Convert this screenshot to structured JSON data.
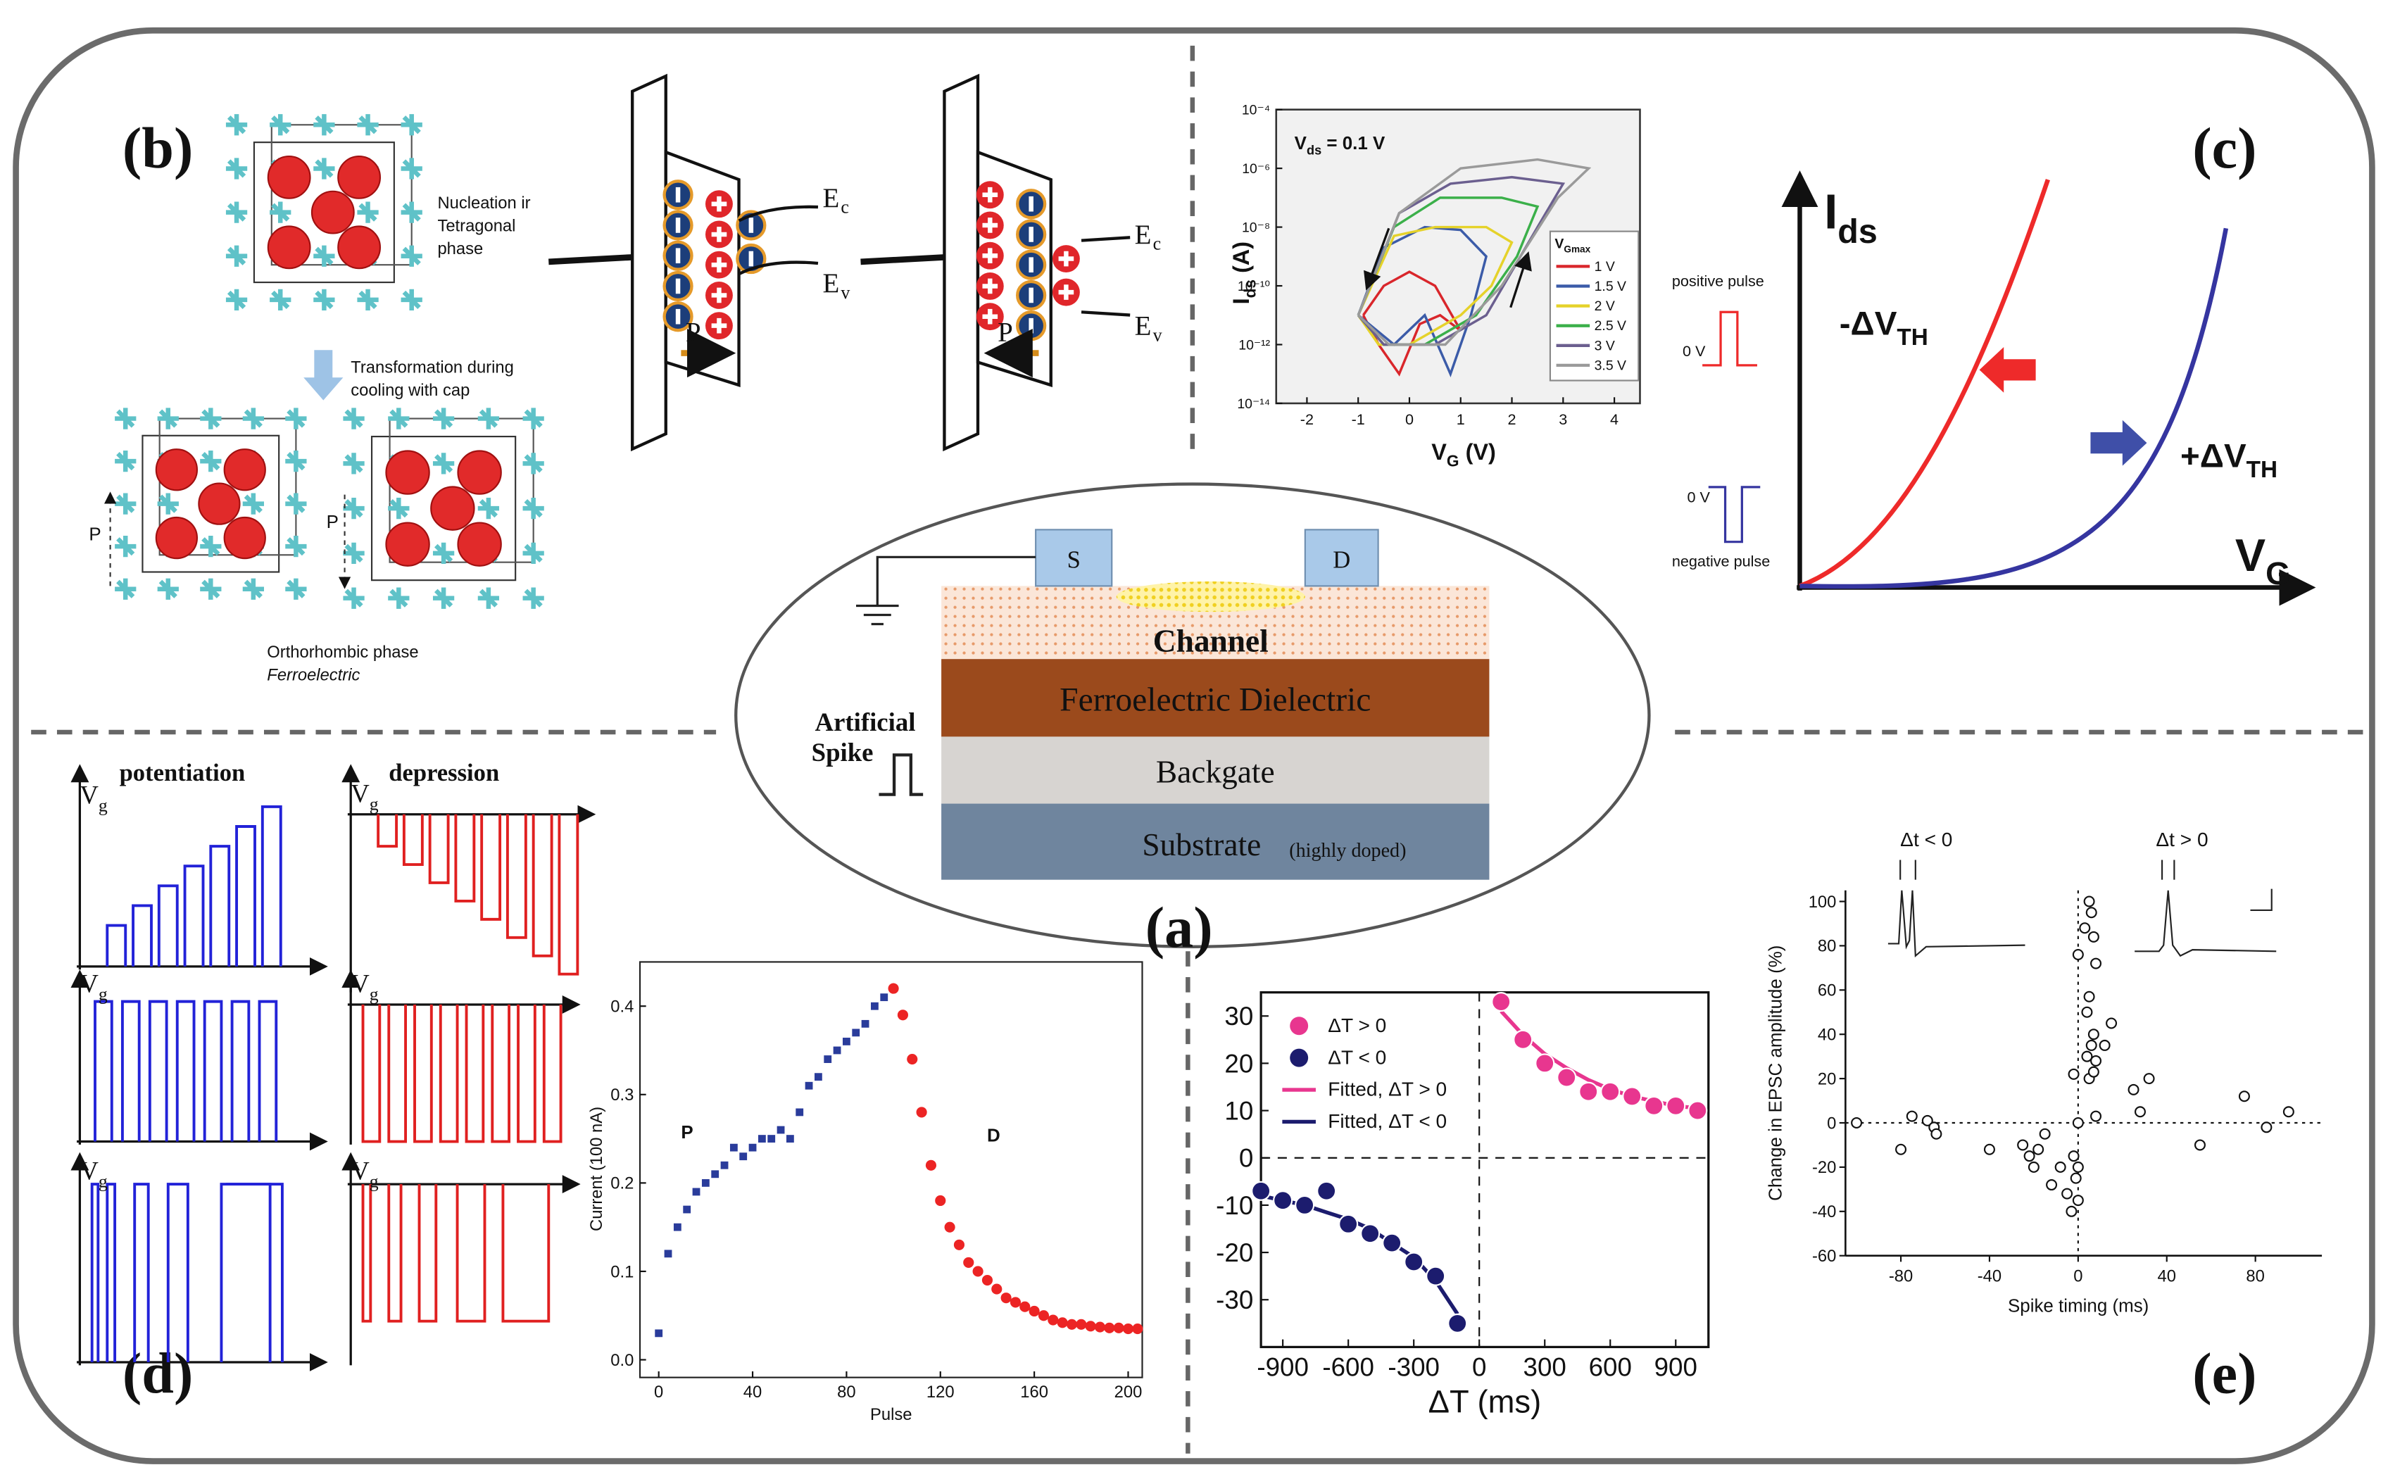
{
  "panels": {
    "a": {
      "label": "(a)",
      "source": "S",
      "drain": "D",
      "channel": "Channel",
      "dielectric": "Ferroelectric Dielectric",
      "backgate": "Backgate",
      "substrate": "Substrate",
      "substrate_note": "(highly doped)",
      "spike": [
        "Artificial",
        "Spike"
      ]
    },
    "b": {
      "label": "(b)",
      "nucleation": [
        "Nucleation ir",
        "Tetragonal",
        "phase"
      ],
      "transformation": [
        "Transformation during",
        "cooling with cap"
      ],
      "polarization": "P",
      "orthorhombic": "Orthorhombic phase",
      "ferroelectric": "Ferroelectric",
      "band_e": "E",
      "band_c": "c",
      "band_v": "v"
    },
    "c": {
      "label": "(c)",
      "chart": {
        "type": "line",
        "log_y": true,
        "annotation": {
          "main": "V",
          "sub": "ds",
          "rest": " = 0.1 V"
        },
        "x_label": {
          "main": "V",
          "sub": "G",
          "rest": " (V)"
        },
        "y_label": {
          "main": "I",
          "sub": "ds",
          "rest": " (A)"
        },
        "legend_title": {
          "main": "V",
          "sub": "Gmax"
        },
        "legend": "lower right",
        "xlim": [
          -2.6,
          4.5
        ],
        "ylim": [
          1e-14,
          0.0001
        ],
        "xticks": [
          -2,
          -1,
          0,
          1,
          2,
          3,
          4
        ],
        "yticks": [
          {
            "value": 1e-14,
            "label": "10⁻¹⁴"
          },
          {
            "value": 1e-12,
            "label": "10⁻¹²"
          },
          {
            "value": 1e-10,
            "label": "10⁻¹⁰"
          },
          {
            "value": 1e-08,
            "label": "10⁻⁸"
          },
          {
            "value": 1e-06,
            "label": "10⁻⁶"
          },
          {
            "value": 0.0001,
            "label": "10⁻⁴"
          }
        ],
        "series": [
          {
            "name": "1 V",
            "color": "#d9262b",
            "x": [
              -0.9,
              -0.5,
              0,
              0.5,
              1.0,
              0.6,
              0.2,
              -0.2,
              -0.6,
              -0.9
            ],
            "values": [
              1e-11,
              1e-10,
              3e-10,
              1e-10,
              3e-12,
              1e-11,
              5e-12,
              1e-13,
              1e-12,
              1e-11
            ]
          },
          {
            "name": "1.5 V",
            "color": "#3b5ba8",
            "x": [
              -1,
              -0.5,
              0.3,
              1.0,
              1.5,
              1.2,
              0.8,
              0.3,
              -0.3,
              -1
            ],
            "values": [
              1e-11,
              2e-09,
              1e-08,
              8e-09,
              1e-09,
              1e-11,
              1e-13,
              1e-11,
              1e-12,
              1e-11
            ]
          },
          {
            "name": "2 V",
            "color": "#e5d22a",
            "x": [
              -1,
              -0.3,
              0.5,
              1.5,
              2.0,
              1.6,
              1.0,
              0,
              -0.6,
              -1
            ],
            "values": [
              1e-11,
              5e-09,
              1e-08,
              1e-08,
              3e-09,
              1e-10,
              1e-11,
              1e-12,
              1e-12,
              1e-11
            ]
          },
          {
            "name": "2.5 V",
            "color": "#3bb04a",
            "x": [
              -1,
              -0.3,
              0.6,
              1.8,
              2.5,
              2.1,
              1.3,
              0.3,
              -0.5,
              -1
            ],
            "values": [
              1e-11,
              1e-08,
              1e-07,
              1e-07,
              5e-08,
              1e-09,
              1e-11,
              1e-12,
              1e-12,
              1e-11
            ]
          },
          {
            "name": "3 V",
            "color": "#6b5f8f",
            "x": [
              -1,
              -0.2,
              0.8,
              2,
              3,
              2.5,
              1.5,
              0.5,
              -0.5,
              -1
            ],
            "values": [
              1e-11,
              3e-08,
              3e-07,
              5e-07,
              3e-07,
              1e-08,
              1e-11,
              1e-12,
              1e-12,
              1e-11
            ]
          },
          {
            "name": "3.5 V",
            "color": "#9a9a9a",
            "x": [
              -1,
              -0.2,
              1,
              2.5,
              3.5,
              2.9,
              1.8,
              0.7,
              -0.4,
              -1
            ],
            "values": [
              1e-11,
              3e-08,
              1e-06,
              2e-06,
              1e-06,
              1e-07,
              1e-10,
              1e-12,
              1e-12,
              1e-11
            ]
          }
        ]
      },
      "schematic": {
        "y_label": {
          "main": "I",
          "sub": "ds"
        },
        "x_label": {
          "main": "V",
          "sub": "G"
        },
        "shift_neg": {
          "main": "-ΔV",
          "sub": "TH"
        },
        "shift_pos": {
          "main": "+ΔV",
          "sub": "TH"
        },
        "positive_pulse": "positive pulse",
        "negative_pulse": "negative pulse",
        "zero": "0 V"
      }
    },
    "d": {
      "label": "(d)",
      "potentiation": "potentiation",
      "depression": "depression",
      "vg": {
        "main": "V",
        "sub": "g"
      },
      "chart": {
        "type": "scatter",
        "x_label": "Pulse",
        "y_label": "Current (100 nA)",
        "annotations": [
          "P",
          "D"
        ],
        "xlim": [
          -8,
          206
        ],
        "ylim": [
          -0.02,
          0.45
        ],
        "xticks": [
          0,
          40,
          80,
          120,
          160,
          200
        ],
        "yticks": [
          {
            "value": 0,
            "label": "0.0"
          },
          0.1,
          0.2,
          0.3,
          0.4
        ],
        "series": [
          {
            "color": "#2a3c9b",
            "marker": "square",
            "x": [
              0,
              4,
              8,
              12,
              16,
              20,
              24,
              28,
              32,
              36,
              40,
              44,
              48,
              52,
              56,
              60,
              64,
              68,
              72,
              76,
              80,
              84,
              88,
              92,
              96
            ],
            "values": [
              0.03,
              0.12,
              0.15,
              0.17,
              0.19,
              0.2,
              0.21,
              0.22,
              0.24,
              0.23,
              0.24,
              0.25,
              0.25,
              0.26,
              0.25,
              0.28,
              0.31,
              0.32,
              0.34,
              0.35,
              0.36,
              0.37,
              0.38,
              0.4,
              0.41
            ]
          },
          {
            "color": "#ec2424",
            "marker": "circle",
            "x": [
              100,
              104,
              108,
              112,
              116,
              120,
              124,
              128,
              132,
              136,
              140,
              144,
              148,
              152,
              156,
              160,
              164,
              168,
              172,
              176,
              180,
              184,
              188,
              192,
              196,
              200,
              204
            ],
            "values": [
              0.42,
              0.39,
              0.34,
              0.28,
              0.22,
              0.18,
              0.15,
              0.13,
              0.11,
              0.1,
              0.09,
              0.08,
              0.07,
              0.065,
              0.06,
              0.055,
              0.05,
              0.045,
              0.042,
              0.04,
              0.04,
              0.038,
              0.037,
              0.036,
              0.036,
              0.035,
              0.035
            ]
          }
        ]
      }
    },
    "stdp": {
      "chart": {
        "type": "scatter",
        "x_label": "ΔT (ms)",
        "legend": "upper left",
        "xlim": [
          -1000,
          1050
        ],
        "ylim": [
          -40,
          35
        ],
        "xticks": [
          -900,
          -600,
          -300,
          0,
          300,
          600,
          900
        ],
        "yticks": [
          30,
          20,
          10,
          0,
          -10,
          -20,
          -30
        ],
        "series": [
          {
            "name": "ΔT > 0",
            "color": "#e8368f",
            "x": [
              100,
              200,
              300,
              400,
              500,
              600,
              700,
              800,
              900,
              1000
            ],
            "values": [
              33,
              25,
              20,
              17,
              14,
              14,
              13,
              11,
              11,
              10
            ]
          },
          {
            "name": "ΔT < 0",
            "color": "#1c1c6e",
            "x": [
              -1000,
              -900,
              -800,
              -700,
              -600,
              -500,
              -400,
              -300,
              -200,
              -100
            ],
            "values": [
              -7,
              -9,
              -10,
              -7,
              -14,
              -16,
              -18,
              -22,
              -25,
              -35
            ]
          },
          {
            "name": "Fitted, ΔT > 0",
            "type": "line",
            "color": "#e8368f",
            "x": [
              100,
              200,
              300,
              400,
              500,
              600,
              700,
              800,
              900,
              1000
            ],
            "values": [
              31,
              26,
              22,
              19,
              16.5,
              14.5,
              13,
              12,
              11,
              10.5
            ]
          },
          {
            "name": "Fitted, ΔT < 0",
            "type": "line",
            "color": "#1c1c6e",
            "x": [
              -1000,
              -900,
              -800,
              -700,
              -600,
              -500,
              -400,
              -300,
              -200,
              -100
            ],
            "values": [
              -8,
              -9,
              -10,
              -11.5,
              -13,
              -15,
              -18,
              -21,
              -26,
              -33
            ]
          }
        ]
      }
    },
    "e": {
      "label": "(e)",
      "chart": {
        "type": "scatter",
        "x_label": "Spike timing (ms)",
        "y_label": "Change in EPSC amplitude (%)",
        "insets": [
          "Δt < 0",
          "Δt > 0"
        ],
        "xlim": [
          -105,
          110
        ],
        "ylim": [
          -60,
          105
        ],
        "xticks": [
          -80,
          -40,
          0,
          40,
          80
        ],
        "yticks": [
          100,
          80,
          60,
          40,
          20,
          0,
          -20,
          -40,
          -60
        ],
        "x": [
          -100,
          -80,
          -75,
          -68,
          -65,
          -64,
          -40,
          -25,
          -22,
          -20,
          -18,
          -15,
          -12,
          -8,
          -5,
          -3,
          -2,
          -1,
          0,
          0,
          0,
          -2,
          0,
          3,
          5,
          6,
          7,
          8,
          5,
          4,
          7,
          6,
          4,
          8,
          5,
          7,
          8,
          12,
          15,
          25,
          28,
          32,
          55,
          75,
          85,
          95
        ],
        "values": [
          0,
          -12,
          3,
          1,
          -2,
          -5,
          -12,
          -10,
          -15,
          -20,
          -12,
          -5,
          -28,
          -20,
          -32,
          -40,
          -15,
          -25,
          -35,
          -20,
          0,
          22,
          76,
          88,
          100,
          95,
          84,
          72,
          57,
          50,
          40,
          35,
          30,
          28,
          20,
          23,
          3,
          35,
          45,
          15,
          5,
          20,
          -10,
          12,
          -2,
          5
        ]
      }
    }
  }
}
